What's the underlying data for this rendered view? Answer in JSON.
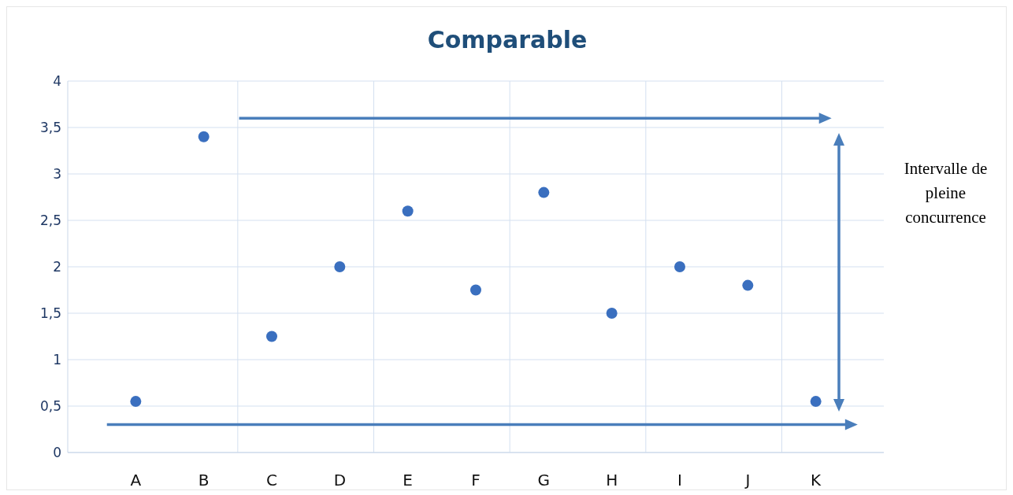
{
  "chart_data": {
    "type": "scatter",
    "title": "Comparable",
    "categories": [
      "A",
      "B",
      "C",
      "D",
      "E",
      "F",
      "G",
      "H",
      "I",
      "J",
      "K"
    ],
    "values": [
      0.55,
      3.4,
      1.25,
      2.0,
      2.6,
      1.75,
      2.8,
      1.5,
      2.0,
      1.8,
      0.55
    ],
    "color": "#3a6fbf",
    "marker": "circle",
    "ylim": [
      0,
      4
    ],
    "yticks": [
      0,
      {
        "value": 0.5,
        "label": "0,5"
      },
      1,
      {
        "value": 1.5,
        "label": "1,5"
      },
      2,
      {
        "value": 2.5,
        "label": "2,5"
      },
      3,
      {
        "value": 3.5,
        "label": "3,5"
      },
      4
    ],
    "grid": true,
    "annotations": [
      "Intervalle de pleine concurrence"
    ]
  }
}
